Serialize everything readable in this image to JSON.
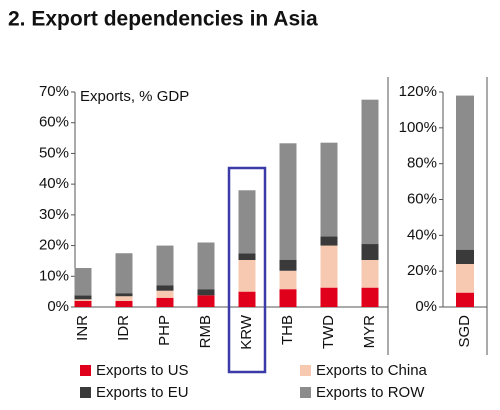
{
  "title": "2. Export dependencies in Asia",
  "chart_data": [
    {
      "type": "stacked_bar",
      "annotation": "Exports, % GDP",
      "categories": [
        "INR",
        "IDR",
        "PHP",
        "RMB",
        "KRW",
        "THB",
        "TWD",
        "MYR"
      ],
      "highlight": "KRW",
      "series": [
        {
          "name": "Exports to US",
          "color": "#e0001b",
          "values": [
            2,
            2,
            3,
            3.8,
            5,
            5.8,
            6.3,
            6.3
          ]
        },
        {
          "name": "Exports to China",
          "color": "#f7c9b0",
          "values": [
            0.5,
            1.5,
            2.3,
            0,
            10.3,
            6,
            13.7,
            9
          ]
        },
        {
          "name": "Exports to EU",
          "color": "#3a3a3a",
          "values": [
            1.3,
            1,
            1.7,
            2,
            2.2,
            3.6,
            3,
            5.2
          ]
        },
        {
          "name": "Exports to ROW",
          "color": "#8c8c8c",
          "values": [
            8.9,
            13,
            13,
            15.2,
            20.5,
            37.9,
            30.5,
            47
          ]
        }
      ],
      "ylim": [
        0,
        70
      ],
      "yticks": [
        {
          "value": 0,
          "label": "0%"
        },
        {
          "value": 10,
          "label": "10%"
        },
        {
          "value": 20,
          "label": "20%"
        },
        {
          "value": 30,
          "label": "30%"
        },
        {
          "value": 40,
          "label": "40%"
        },
        {
          "value": 50,
          "label": "50%"
        },
        {
          "value": 60,
          "label": "60%"
        },
        {
          "value": 70,
          "label": "70%"
        }
      ]
    },
    {
      "type": "stacked_bar",
      "categories": [
        "SGD"
      ],
      "series": [
        {
          "name": "Exports to US",
          "color": "#e0001b",
          "values": [
            8
          ]
        },
        {
          "name": "Exports to China",
          "color": "#f7c9b0",
          "values": [
            16
          ]
        },
        {
          "name": "Exports to EU",
          "color": "#3a3a3a",
          "values": [
            8
          ]
        },
        {
          "name": "Exports to ROW",
          "color": "#8c8c8c",
          "values": [
            86
          ]
        }
      ],
      "ylim": [
        0,
        120
      ],
      "yticks": [
        {
          "value": 0,
          "label": "0%"
        },
        {
          "value": 20,
          "label": "20%"
        },
        {
          "value": 40,
          "label": "40%"
        },
        {
          "value": 60,
          "label": "60%"
        },
        {
          "value": 80,
          "label": "80%"
        },
        {
          "value": 100,
          "label": "100%"
        },
        {
          "value": 120,
          "label": "120%"
        }
      ]
    }
  ]
}
